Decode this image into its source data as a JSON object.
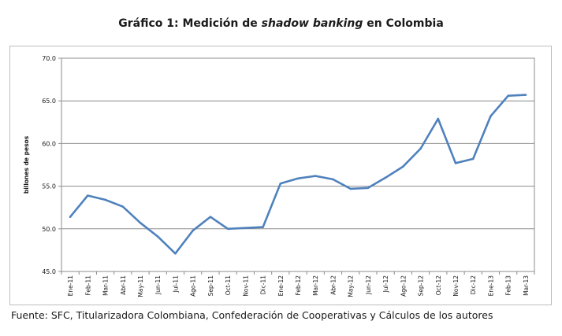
{
  "title": {
    "prefix": "Gráfico 1: Medición de ",
    "italic": "shadow banking",
    "suffix": " en Colombia"
  },
  "source": "Fuente: SFC, Titularizadora Colombiana, Confederación de Cooperativas y Cálculos de los autores",
  "chart_data": {
    "type": "line",
    "title": "Gráfico 1: Medición de shadow banking en Colombia",
    "xlabel": "",
    "ylabel": "billones de pesos",
    "ylim": [
      45,
      70
    ],
    "yticks": [
      "45.0",
      "50.0",
      "55.0",
      "60.0",
      "65.0",
      "70.0"
    ],
    "grid": true,
    "line_color": "#4f81bd",
    "categories": [
      "Ene-11",
      "Feb-11",
      "Mar-11",
      "Abr-11",
      "May-11",
      "Jun-11",
      "Jul-11",
      "Ago-11",
      "Sep-11",
      "Oct-11",
      "Nov-11",
      "Dic-11",
      "Ene-12",
      "Feb-12",
      "Mar-12",
      "Abr-12",
      "May-12",
      "Jun-12",
      "Jul-12",
      "Ago-12",
      "Sep-12",
      "Oct-12",
      "Nov-12",
      "Dic-12",
      "Ene-13",
      "Feb-13",
      "Mar-13"
    ],
    "values": [
      51.4,
      53.9,
      53.4,
      52.6,
      50.7,
      49.1,
      47.1,
      49.8,
      51.4,
      50.0,
      50.1,
      50.2,
      55.3,
      55.9,
      56.2,
      55.8,
      54.7,
      54.8,
      56.0,
      57.3,
      59.4,
      62.9,
      57.7,
      58.2,
      63.2,
      65.6,
      65.7
    ]
  }
}
